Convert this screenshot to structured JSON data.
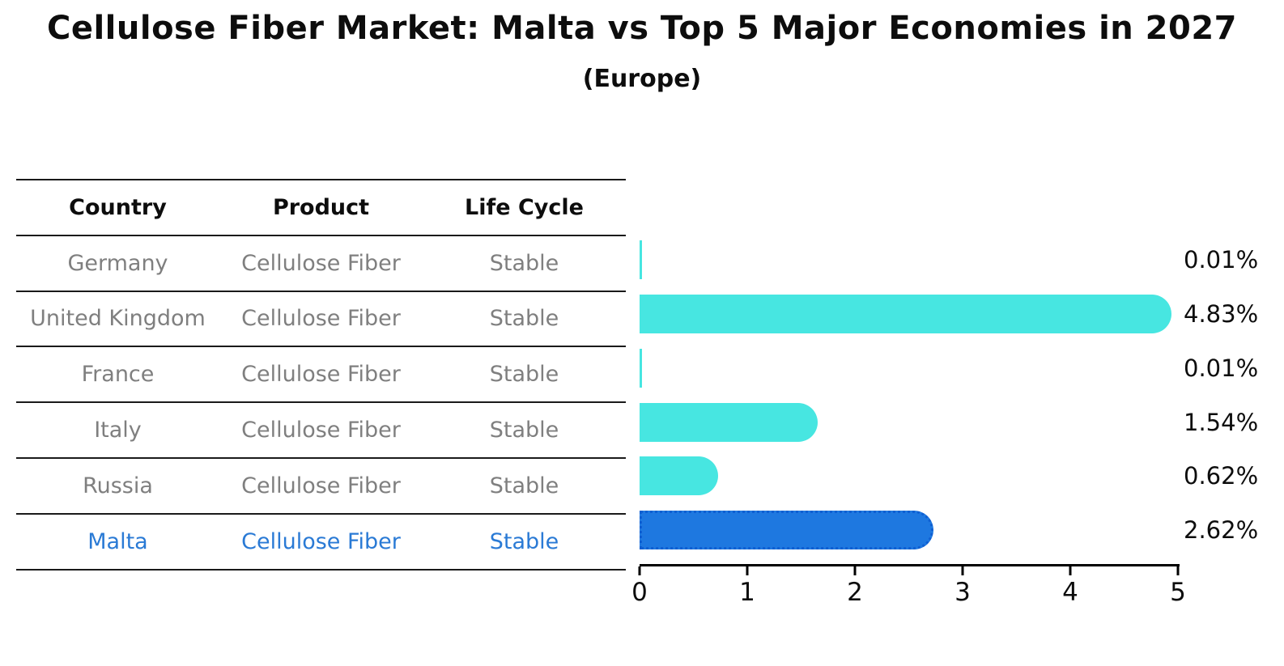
{
  "title": "Cellulose Fiber Market: Malta vs Top 5 Major Economies in 2027",
  "subtitle": "(Europe)",
  "table": {
    "headers": [
      "Country",
      "Product",
      "Life Cycle"
    ],
    "rows": [
      {
        "country": "Germany",
        "product": "Cellulose Fiber",
        "life_cycle": "Stable",
        "highlight": false
      },
      {
        "country": "United Kingdom",
        "product": "Cellulose Fiber",
        "life_cycle": "Stable",
        "highlight": false
      },
      {
        "country": "France",
        "product": "Cellulose Fiber",
        "life_cycle": "Stable",
        "highlight": false
      },
      {
        "country": "Italy",
        "product": "Cellulose Fiber",
        "life_cycle": "Stable",
        "highlight": false
      },
      {
        "country": "Russia",
        "product": "Cellulose Fiber",
        "life_cycle": "Stable",
        "highlight": false
      },
      {
        "country": "Malta",
        "product": "Cellulose Fiber",
        "life_cycle": "Stable",
        "highlight": true
      }
    ]
  },
  "chart_data": {
    "type": "bar",
    "orientation": "horizontal",
    "title": "Cellulose Fiber Market: Malta vs Top 5 Major Economies in 2027",
    "subtitle": "(Europe)",
    "categories": [
      "Germany",
      "United Kingdom",
      "France",
      "Italy",
      "Russia",
      "Malta"
    ],
    "values": [
      0.01,
      4.83,
      0.01,
      1.54,
      0.62,
      2.62
    ],
    "value_labels": [
      "0.01%",
      "4.83%",
      "0.01%",
      "1.54%",
      "0.62%",
      "2.62%"
    ],
    "xlim": [
      0,
      5
    ],
    "xticks": [
      "0",
      "1",
      "2",
      "3",
      "4",
      "5"
    ],
    "grid": false,
    "legend": false,
    "highlight_index": 5,
    "bar_color": "#47e6e1",
    "highlight_bar_color": "#1e78e0",
    "highlight_border_color": "#0f5fd2",
    "highlight_text_color": "#2a7ad5",
    "table_text_color": "#7f7f7f",
    "line_color": "#1a1a1a"
  }
}
